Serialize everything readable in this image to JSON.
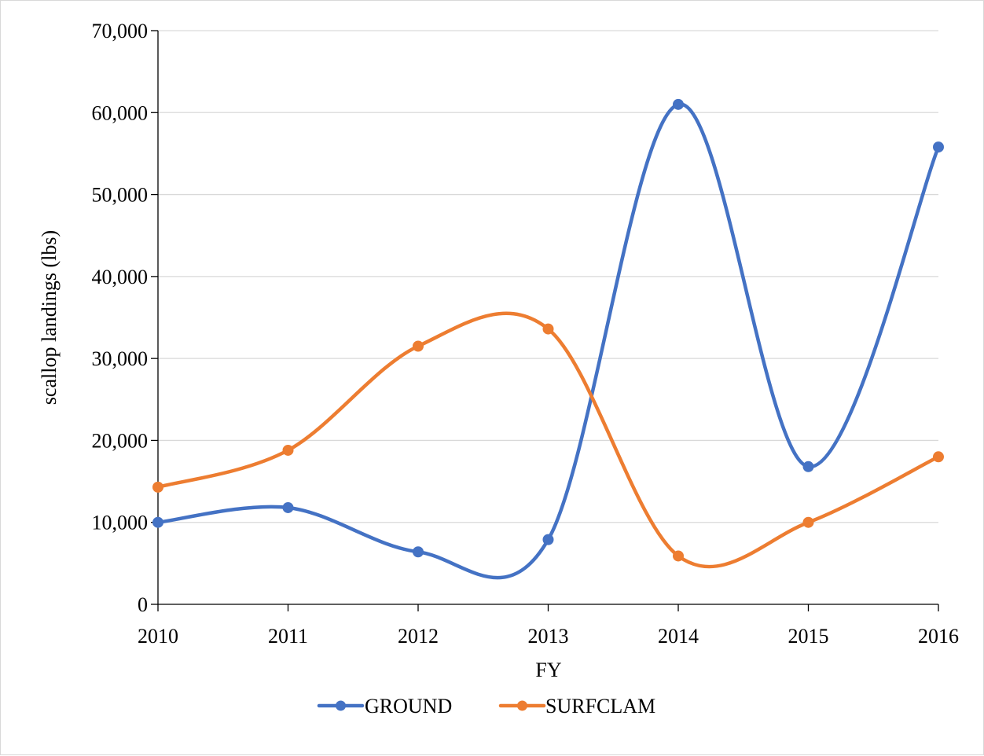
{
  "chart_data": {
    "type": "line",
    "smooth": true,
    "categories": [
      "2010",
      "2011",
      "2012",
      "2013",
      "2014",
      "2015",
      "2016"
    ],
    "series": [
      {
        "name": "GROUND",
        "color": "#4472c4",
        "values": [
          10000,
          11800,
          6400,
          7900,
          61000,
          16800,
          55800
        ]
      },
      {
        "name": "SURFCLAM",
        "color": "#ed7d31",
        "values": [
          14300,
          18800,
          31500,
          33600,
          5900,
          10000,
          18000
        ]
      }
    ],
    "xlabel": "FY",
    "ylabel": "scallop landings (lbs)",
    "ylim": [
      0,
      70000
    ],
    "yticks": [
      0,
      10000,
      20000,
      30000,
      40000,
      50000,
      60000,
      70000
    ],
    "ytick_labels": [
      "0",
      "10,000",
      "20,000",
      "30,000",
      "40,000",
      "50,000",
      "60,000",
      "70,000"
    ],
    "grid": true,
    "legend_position": "bottom"
  }
}
